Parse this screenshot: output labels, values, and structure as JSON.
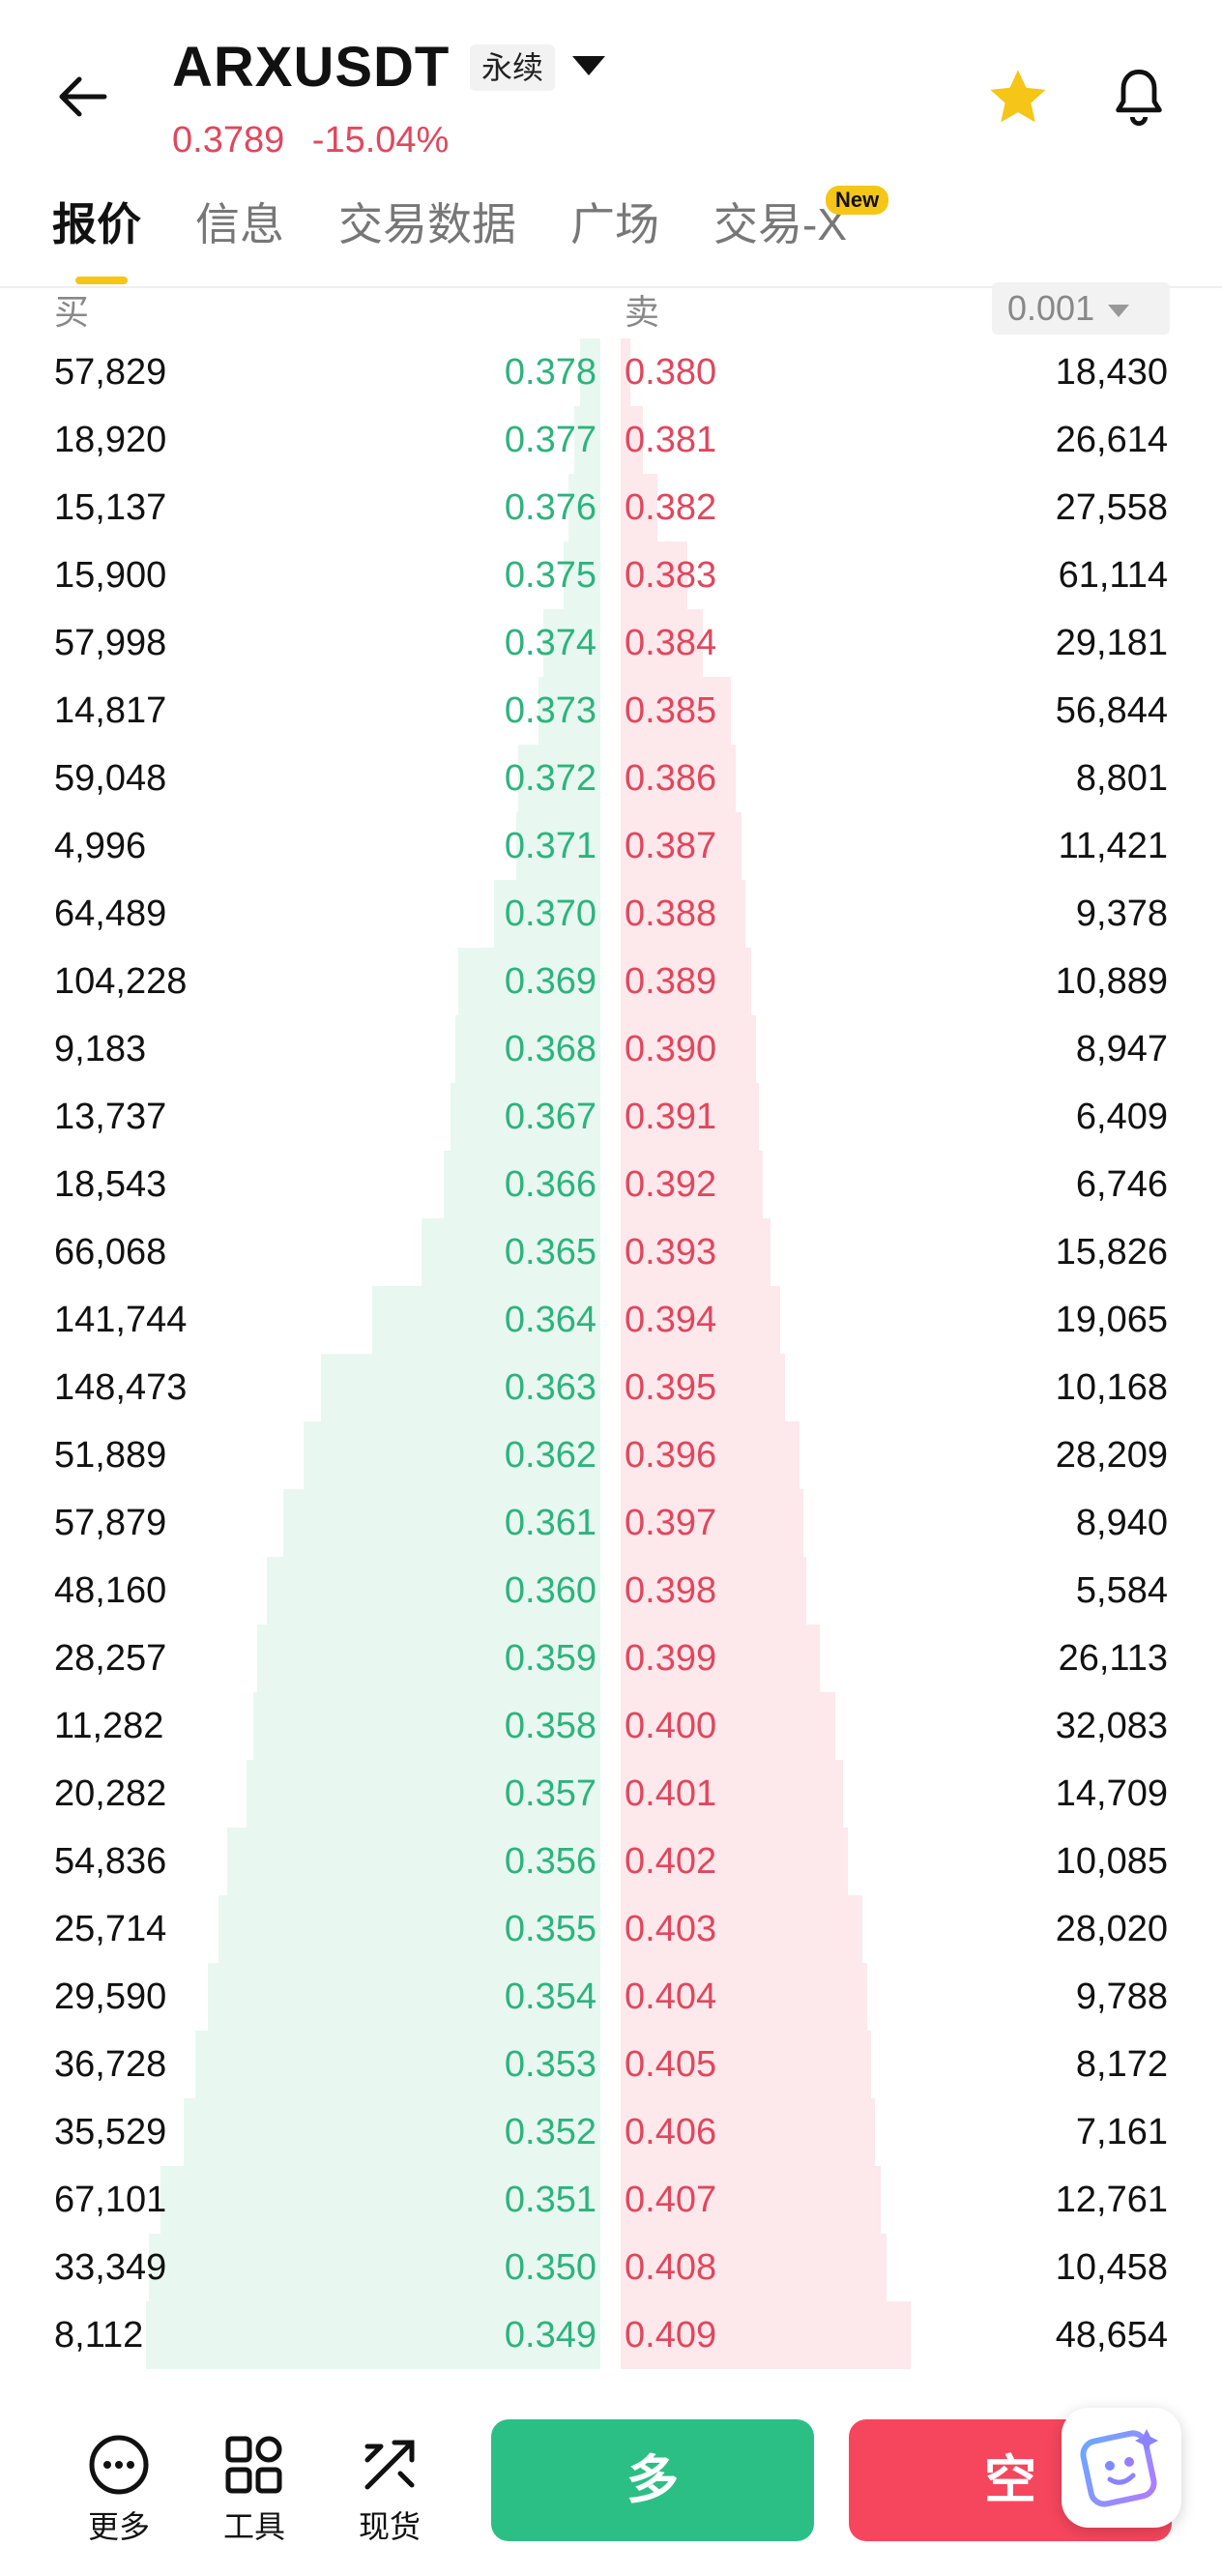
{
  "header": {
    "symbol": "ARXUSDT",
    "contract_type": "永续",
    "last_price": "0.3789",
    "change_pct": "-15.04%"
  },
  "tabs": [
    {
      "label": "报价",
      "active": true
    },
    {
      "label": "信息"
    },
    {
      "label": "交易数据"
    },
    {
      "label": "广场"
    },
    {
      "label": "交易-X"
    }
  ],
  "new_badge": "New",
  "orderbook": {
    "bid_label": "买",
    "ask_label": "卖",
    "precision": "0.001",
    "rows": [
      {
        "bid_qty": "57,829",
        "bid_price": "0.378",
        "ask_price": "0.380",
        "ask_qty": "18,430",
        "bid_depth": 57829,
        "ask_depth": 18430
      },
      {
        "bid_qty": "18,920",
        "bid_price": "0.377",
        "ask_price": "0.381",
        "ask_qty": "26,614",
        "bid_depth": 76749,
        "ask_depth": 45044
      },
      {
        "bid_qty": "15,137",
        "bid_price": "0.376",
        "ask_price": "0.382",
        "ask_qty": "27,558",
        "bid_depth": 91886,
        "ask_depth": 72602
      },
      {
        "bid_qty": "15,900",
        "bid_price": "0.375",
        "ask_price": "0.383",
        "ask_qty": "61,114",
        "bid_depth": 107786,
        "ask_depth": 133716
      },
      {
        "bid_qty": "57,998",
        "bid_price": "0.374",
        "ask_price": "0.384",
        "ask_qty": "29,181",
        "bid_depth": 165784,
        "ask_depth": 162897
      },
      {
        "bid_qty": "14,817",
        "bid_price": "0.373",
        "ask_price": "0.385",
        "ask_qty": "56,844",
        "bid_depth": 180601,
        "ask_depth": 219741
      },
      {
        "bid_qty": "59,048",
        "bid_price": "0.372",
        "ask_price": "0.386",
        "ask_qty": "8,801",
        "bid_depth": 239649,
        "ask_depth": 228542
      },
      {
        "bid_qty": "4,996",
        "bid_price": "0.371",
        "ask_price": "0.387",
        "ask_qty": "11,421",
        "bid_depth": 244645,
        "ask_depth": 239963
      },
      {
        "bid_qty": "64,489",
        "bid_price": "0.370",
        "ask_price": "0.388",
        "ask_qty": "9,378",
        "bid_depth": 309134,
        "ask_depth": 249341
      },
      {
        "bid_qty": "104,228",
        "bid_price": "0.369",
        "ask_price": "0.389",
        "ask_qty": "10,889",
        "bid_depth": 413362,
        "ask_depth": 260230
      },
      {
        "bid_qty": "9,183",
        "bid_price": "0.368",
        "ask_price": "0.390",
        "ask_qty": "8,947",
        "bid_depth": 422545,
        "ask_depth": 269177
      },
      {
        "bid_qty": "13,737",
        "bid_price": "0.367",
        "ask_price": "0.391",
        "ask_qty": "6,409",
        "bid_depth": 436282,
        "ask_depth": 275586
      },
      {
        "bid_qty": "18,543",
        "bid_price": "0.366",
        "ask_price": "0.392",
        "ask_qty": "6,746",
        "bid_depth": 454825,
        "ask_depth": 282332
      },
      {
        "bid_qty": "66,068",
        "bid_price": "0.365",
        "ask_price": "0.393",
        "ask_qty": "15,826",
        "bid_depth": 520893,
        "ask_depth": 298158
      },
      {
        "bid_qty": "141,744",
        "bid_price": "0.364",
        "ask_price": "0.394",
        "ask_qty": "19,065",
        "bid_depth": 662637,
        "ask_depth": 317223
      },
      {
        "bid_qty": "148,473",
        "bid_price": "0.363",
        "ask_price": "0.395",
        "ask_qty": "10,168",
        "bid_depth": 811110,
        "ask_depth": 327391
      },
      {
        "bid_qty": "51,889",
        "bid_price": "0.362",
        "ask_price": "0.396",
        "ask_qty": "28,209",
        "bid_depth": 862999,
        "ask_depth": 355600
      },
      {
        "bid_qty": "57,879",
        "bid_price": "0.361",
        "ask_price": "0.397",
        "ask_qty": "8,940",
        "bid_depth": 920878,
        "ask_depth": 364540
      },
      {
        "bid_qty": "48,160",
        "bid_price": "0.360",
        "ask_price": "0.398",
        "ask_qty": "5,584",
        "bid_depth": 969038,
        "ask_depth": 370124
      },
      {
        "bid_qty": "28,257",
        "bid_price": "0.359",
        "ask_price": "0.399",
        "ask_qty": "26,113",
        "bid_depth": 997295,
        "ask_depth": 396237
      },
      {
        "bid_qty": "11,282",
        "bid_price": "0.358",
        "ask_price": "0.400",
        "ask_qty": "32,083",
        "bid_depth": 1008577,
        "ask_depth": 428320
      },
      {
        "bid_qty": "20,282",
        "bid_price": "0.357",
        "ask_price": "0.401",
        "ask_qty": "14,709",
        "bid_depth": 1028859,
        "ask_depth": 443029
      },
      {
        "bid_qty": "54,836",
        "bid_price": "0.356",
        "ask_price": "0.402",
        "ask_qty": "10,085",
        "bid_depth": 1083695,
        "ask_depth": 453114
      },
      {
        "bid_qty": "25,714",
        "bid_price": "0.355",
        "ask_price": "0.403",
        "ask_qty": "28,020",
        "bid_depth": 1109409,
        "ask_depth": 481134
      },
      {
        "bid_qty": "29,590",
        "bid_price": "0.354",
        "ask_price": "0.404",
        "ask_qty": "9,788",
        "bid_depth": 1138999,
        "ask_depth": 490922
      },
      {
        "bid_qty": "36,728",
        "bid_price": "0.353",
        "ask_price": "0.405",
        "ask_qty": "8,172",
        "bid_depth": 1175727,
        "ask_depth": 499094
      },
      {
        "bid_qty": "35,529",
        "bid_price": "0.352",
        "ask_price": "0.406",
        "ask_qty": "7,161",
        "bid_depth": 1211256,
        "ask_depth": 506255
      },
      {
        "bid_qty": "67,101",
        "bid_price": "0.351",
        "ask_price": "0.407",
        "ask_qty": "12,761",
        "bid_depth": 1278357,
        "ask_depth": 519016
      },
      {
        "bid_qty": "33,349",
        "bid_price": "0.350",
        "ask_price": "0.408",
        "ask_qty": "10,458",
        "bid_depth": 1311706,
        "ask_depth": 529474
      },
      {
        "bid_qty": "8,112",
        "bid_price": "0.349",
        "ask_price": "0.409",
        "ask_qty": "48,654",
        "bid_depth": 1319818,
        "ask_depth": 578128
      }
    ]
  },
  "bottom_bar": {
    "more_label": "更多",
    "tools_label": "工具",
    "spot_label": "现货",
    "long_label": "多",
    "short_label": "空"
  },
  "colors": {
    "up": "#2bbf85",
    "down": "#f6465d",
    "accent": "#f5c518"
  }
}
